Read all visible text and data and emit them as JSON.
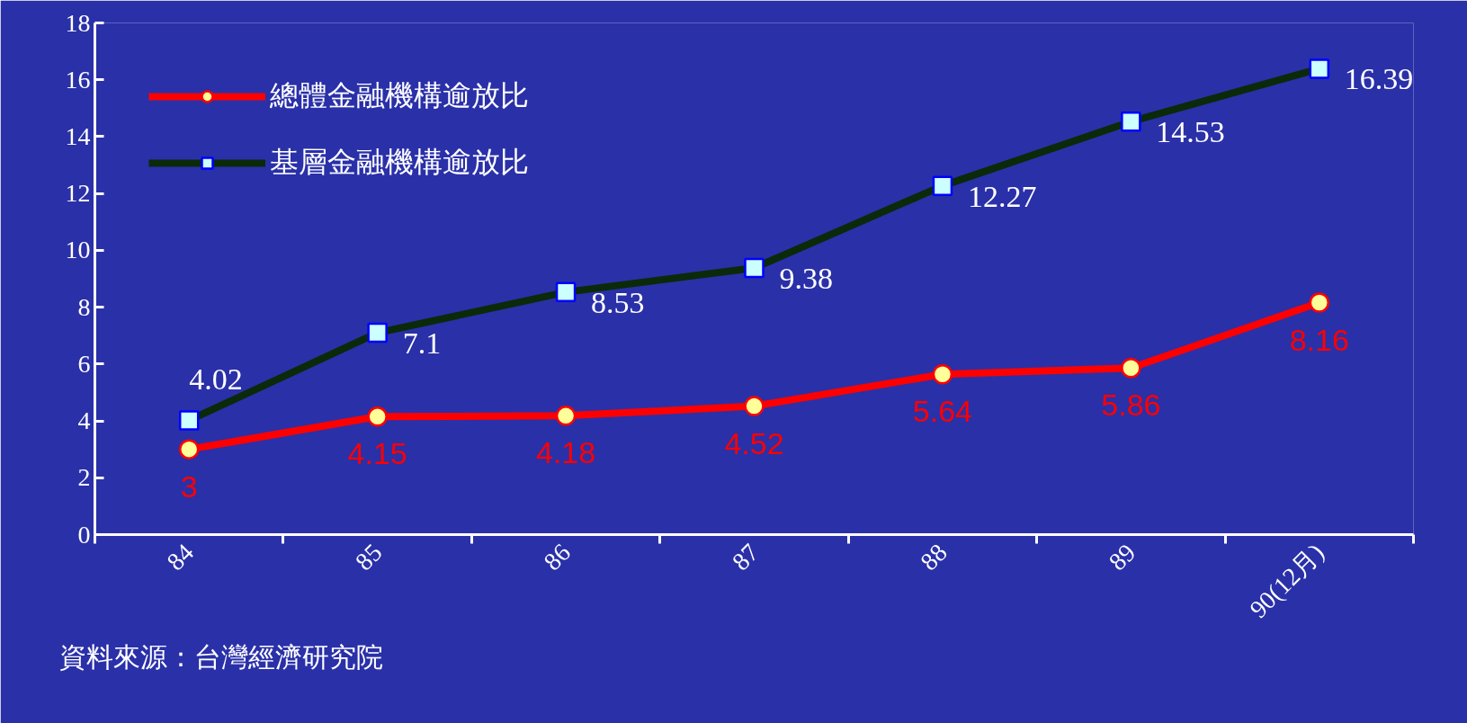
{
  "chart_data": {
    "type": "line",
    "categories": [
      "84",
      "85",
      "86",
      "87",
      "88",
      "89",
      "90(12月)"
    ],
    "series": [
      {
        "name": "總體金融機構逾放比",
        "color": "#ff0000",
        "marker": "circle",
        "values": [
          3,
          4.15,
          4.18,
          4.52,
          5.64,
          5.86,
          8.16
        ]
      },
      {
        "name": "基層金融機構逾放比",
        "color": "#0a2a0a",
        "marker": "square",
        "values": [
          4.02,
          7.1,
          8.53,
          9.38,
          12.27,
          14.53,
          16.39
        ]
      }
    ],
    "ylim": [
      0,
      18
    ],
    "yticks": [
      0,
      2,
      4,
      6,
      8,
      10,
      12,
      14,
      16,
      18
    ],
    "grid": false,
    "legend": "top left",
    "data_labels": true,
    "annotations": [
      "資料來源：台灣經濟研究院"
    ]
  }
}
